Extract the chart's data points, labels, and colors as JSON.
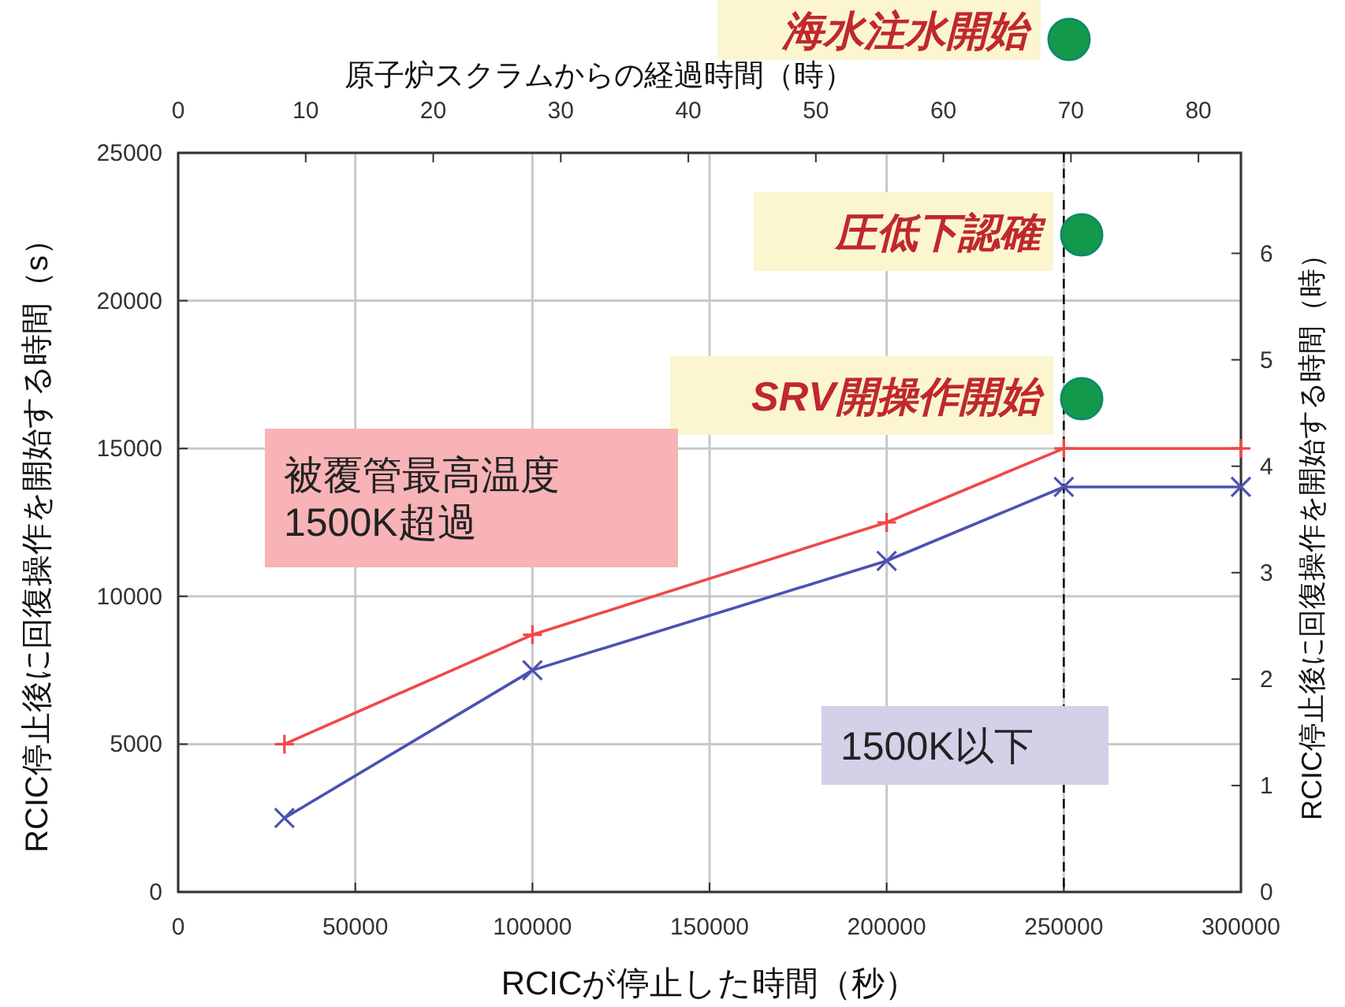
{
  "chart_data": {
    "type": "line",
    "xlabel": "RCICが停止した時間（秒）",
    "ylabel": "RCIC停止後に回復操作を開始する時間（s）",
    "y2label": "RCIC停止後に回復操作を開始する時間（時）",
    "x2label": "原子炉スクラムからの経過時間（時）",
    "x": [
      30000,
      100000,
      200000,
      250000,
      300000
    ],
    "series": [
      {
        "color": "#f04848",
        "marker": "cross",
        "values": [
          5000,
          8700,
          12500,
          15000,
          15000
        ]
      },
      {
        "color": "#4c52b0",
        "marker": "cross",
        "values": [
          2500,
          7500,
          11200,
          13700,
          13700
        ]
      }
    ],
    "xlim": [
      0,
      300000
    ],
    "xticks": [
      0,
      50000,
      100000,
      150000,
      200000,
      250000,
      300000
    ],
    "ylim": [
      0,
      25000
    ],
    "yticks": [
      0,
      5000,
      10000,
      15000,
      20000,
      25000
    ],
    "x2lim": [
      0,
      83.33
    ],
    "x2ticks": [
      0,
      10,
      20,
      30,
      40,
      50,
      60,
      70,
      80
    ],
    "y2lim": [
      0,
      6.944
    ],
    "y2ticks": [
      0,
      1,
      2,
      3,
      4,
      5,
      6
    ],
    "ref_lines": [
      {
        "axis": "x",
        "value": 250000,
        "color": "#000000",
        "line_style": "dashed"
      }
    ],
    "annotations": [
      "海水注水開始",
      "圧低下認確",
      "SRV開操作開始",
      "被覆管最高温度\n1500K超過",
      "1500K以下"
    ],
    "grid": true
  }
}
